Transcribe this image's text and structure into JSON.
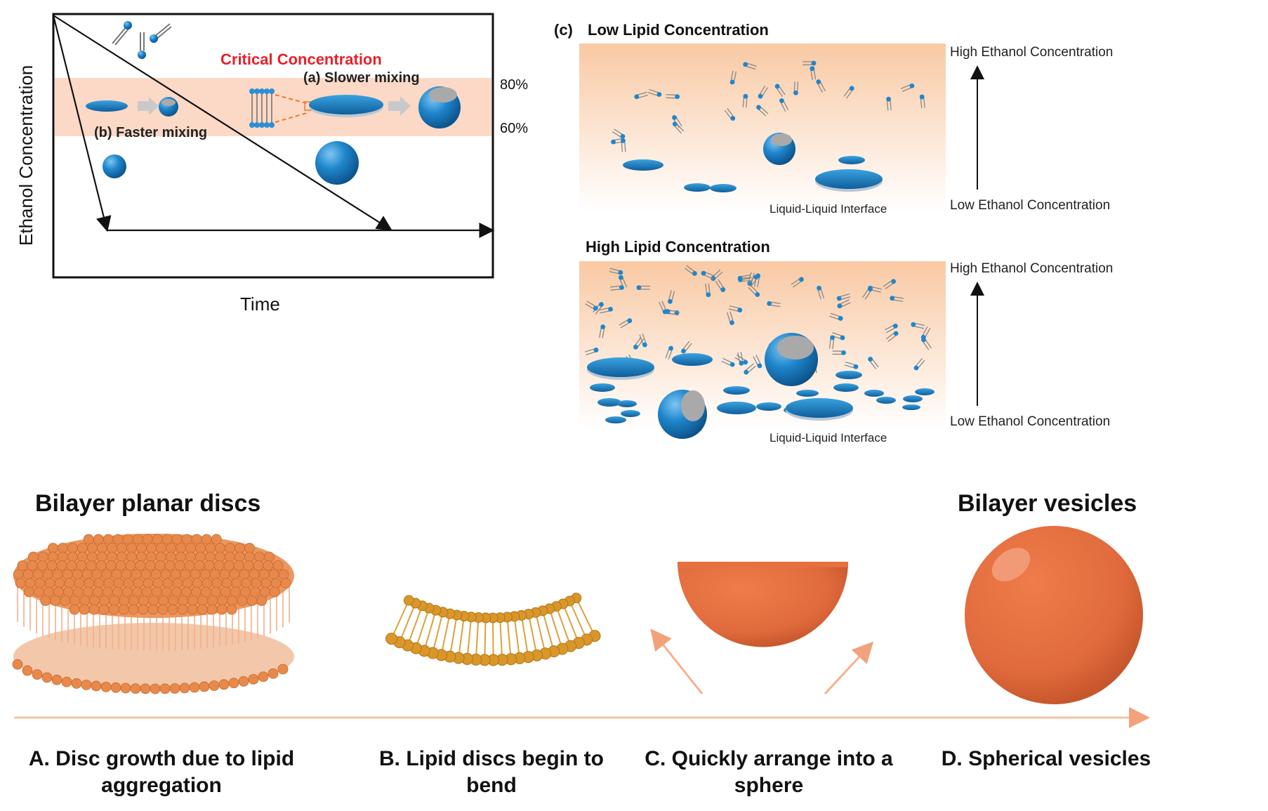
{
  "top_left": {
    "y_axis_label": "Ethanol Concentration",
    "x_axis_label": "Time",
    "critical_label": "Critical Concentration",
    "slower_label": "(a) Slower mixing",
    "faster_label": "(b) Faster mixing",
    "pct_high": "80%",
    "pct_low": "60%"
  },
  "panel_c": {
    "tag": "(c)",
    "low_title": "Low Lipid Concentration",
    "high_title": "High Lipid Concentration",
    "high_ethanol": "High Ethanol Concentration",
    "low_ethanol": "Low Ethanol Concentration",
    "interface": "Liquid-Liquid Interface"
  },
  "bottom": {
    "left_title": "Bilayer planar discs",
    "right_title": "Bilayer vesicles",
    "steps": [
      "A. Disc growth due to lipid aggregation",
      "B. Lipid discs begin to bend",
      "C. Quickly arrange into a sphere",
      "D. Spherical vesicles"
    ]
  },
  "colors": {
    "band": "#fbd9c6",
    "lipid_blue": "#1f7dc0",
    "critical_red": "#e8202a",
    "orange_sphere": "#e06a3c",
    "gold_lipid": "#d99a2a"
  }
}
